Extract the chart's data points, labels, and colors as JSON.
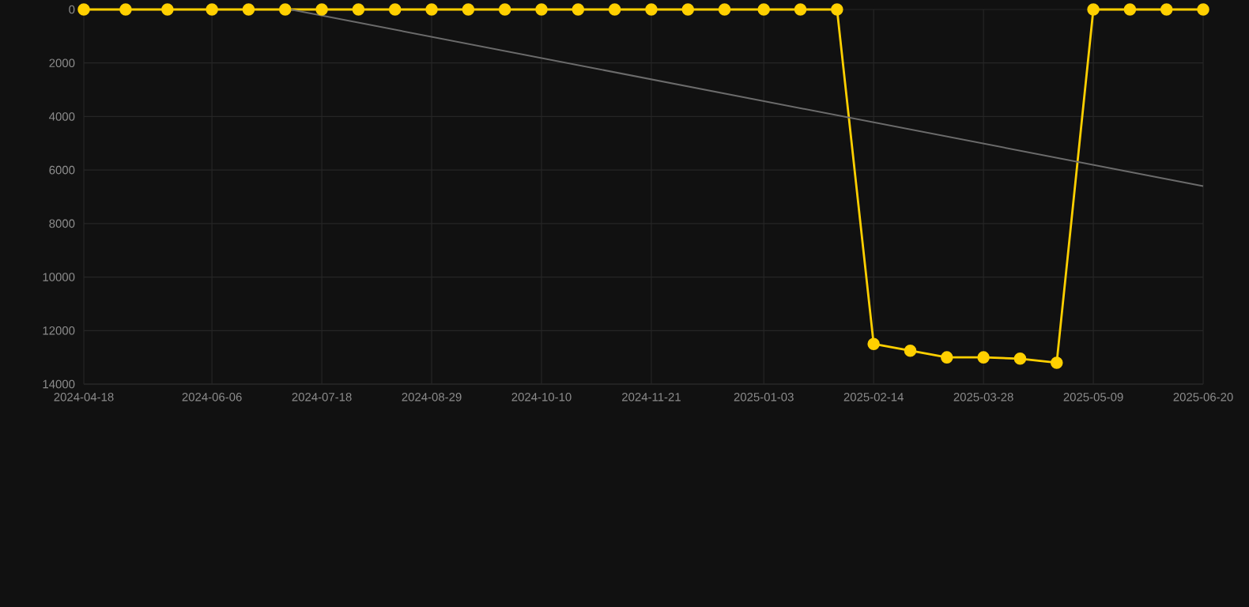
{
  "chart_data": {
    "type": "line",
    "x": [
      "2024-04-18",
      "2024-05-04",
      "2024-05-20",
      "2024-06-06",
      "2024-06-20",
      "2024-07-04",
      "2024-07-18",
      "2024-08-01",
      "2024-08-15",
      "2024-08-29",
      "2024-09-12",
      "2024-09-26",
      "2024-10-10",
      "2024-10-24",
      "2024-11-07",
      "2024-11-21",
      "2024-12-05",
      "2024-12-19",
      "2025-01-03",
      "2025-01-17",
      "2025-01-31",
      "2025-02-14",
      "2025-02-28",
      "2025-03-14",
      "2025-03-28",
      "2025-04-11",
      "2025-04-25",
      "2025-05-09",
      "2025-05-23",
      "2025-06-06",
      "2025-06-20"
    ],
    "series": [
      {
        "color": "#ffd000",
        "values": [
          0,
          0,
          0,
          0,
          0,
          0,
          0,
          0,
          0,
          0,
          0,
          0,
          0,
          0,
          0,
          0,
          0,
          0,
          0,
          0,
          0,
          12500,
          12750,
          13000,
          13000,
          13050,
          13200,
          0,
          0,
          0,
          0
        ]
      },
      {
        "type": "line",
        "color": "#6b6b6b",
        "marker": "none",
        "x": [
          "2024-07-06",
          "2025-06-20"
        ],
        "values": [
          0,
          6600
        ]
      }
    ],
    "ylim": [
      14000,
      0
    ],
    "yticks": [
      0,
      2000,
      4000,
      6000,
      8000,
      10000,
      12000,
      14000
    ],
    "xlim": [
      "2024-04-18",
      "2025-06-20"
    ],
    "xticks": [
      "2024-04-18",
      "2024-06-06",
      "2024-07-18",
      "2024-08-29",
      "2024-10-10",
      "2024-11-21",
      "2025-01-03",
      "2025-02-14",
      "2025-03-28",
      "2025-05-09",
      "2025-06-20"
    ],
    "grid": true,
    "marker": "circle",
    "line_style": "solid"
  }
}
